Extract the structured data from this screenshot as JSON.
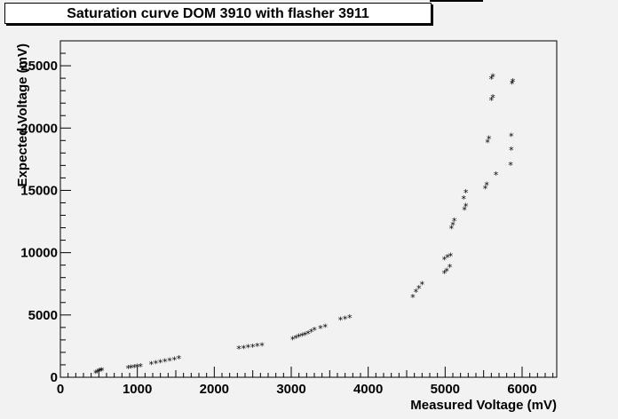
{
  "chart_data": {
    "type": "scatter",
    "title": "Saturation curve DOM 3910 with flasher 3911",
    "xlabel": "Measured Voltage (mV)",
    "ylabel": "Expected Voltage (mV)",
    "xlim": [
      0,
      6450
    ],
    "ylim": [
      0,
      27000
    ],
    "grid": false,
    "marker": "*",
    "x_ticks": [
      0,
      1000,
      2000,
      3000,
      4000,
      5000,
      6000
    ],
    "y_ticks": [
      0,
      5000,
      10000,
      15000,
      20000,
      25000
    ],
    "x_tick_labels": [
      "0",
      "1000",
      "2000",
      "3000",
      "4000",
      "5000",
      "6000"
    ],
    "y_tick_labels": [
      "0",
      "5000",
      "10000",
      "15000",
      "20000",
      "25000"
    ],
    "points": [
      [
        460,
        380
      ],
      [
        480,
        450
      ],
      [
        500,
        520
      ],
      [
        520,
        560
      ],
      [
        540,
        600
      ],
      [
        880,
        800
      ],
      [
        920,
        820
      ],
      [
        960,
        850
      ],
      [
        1000,
        880
      ],
      [
        1040,
        920
      ],
      [
        1180,
        1100
      ],
      [
        1240,
        1180
      ],
      [
        1300,
        1250
      ],
      [
        1360,
        1320
      ],
      [
        1420,
        1380
      ],
      [
        1480,
        1450
      ],
      [
        1540,
        1550
      ],
      [
        2320,
        2350
      ],
      [
        2380,
        2400
      ],
      [
        2440,
        2450
      ],
      [
        2500,
        2500
      ],
      [
        2560,
        2550
      ],
      [
        2620,
        2600
      ],
      [
        3020,
        3100
      ],
      [
        3060,
        3200
      ],
      [
        3100,
        3300
      ],
      [
        3140,
        3380
      ],
      [
        3180,
        3450
      ],
      [
        3220,
        3550
      ],
      [
        3260,
        3700
      ],
      [
        3300,
        3850
      ],
      [
        3380,
        4000
      ],
      [
        3440,
        4100
      ],
      [
        3640,
        4650
      ],
      [
        3700,
        4750
      ],
      [
        3760,
        4850
      ],
      [
        4580,
        6500
      ],
      [
        4620,
        6900
      ],
      [
        4660,
        7200
      ],
      [
        4700,
        7500
      ],
      [
        4990,
        8400
      ],
      [
        5020,
        8600
      ],
      [
        5060,
        8900
      ],
      [
        4990,
        9500
      ],
      [
        5030,
        9700
      ],
      [
        5070,
        9800
      ],
      [
        5080,
        12000
      ],
      [
        5100,
        12300
      ],
      [
        5120,
        12600
      ],
      [
        5250,
        13500
      ],
      [
        5270,
        13800
      ],
      [
        5240,
        14400
      ],
      [
        5270,
        14900
      ],
      [
        5520,
        15200
      ],
      [
        5540,
        15500
      ],
      [
        5550,
        18900
      ],
      [
        5570,
        19200
      ],
      [
        5600,
        22300
      ],
      [
        5620,
        22500
      ],
      [
        5600,
        24000
      ],
      [
        5620,
        24200
      ],
      [
        5660,
        16300
      ],
      [
        5850,
        17100
      ],
      [
        5860,
        18300
      ],
      [
        5860,
        19400
      ],
      [
        5870,
        23600
      ],
      [
        5880,
        23800
      ]
    ]
  }
}
